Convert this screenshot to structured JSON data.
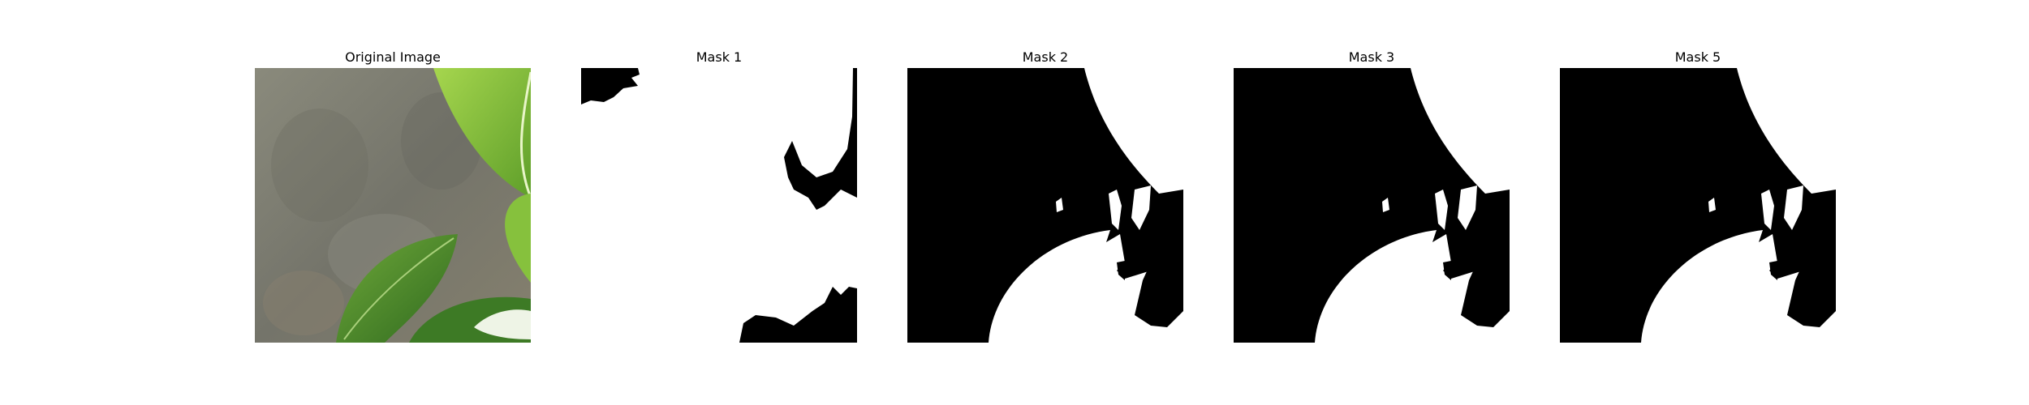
{
  "panels": [
    {
      "title": "Original Image",
      "kind": "photo"
    },
    {
      "title": "Mask 1",
      "kind": "mask-inverse"
    },
    {
      "title": "Mask 2",
      "kind": "mask"
    },
    {
      "title": "Mask 3",
      "kind": "mask"
    },
    {
      "title": "Mask 5",
      "kind": "mask"
    }
  ],
  "colors": {
    "background": "#ffffff",
    "mask_fg": "#000000",
    "mask_bg": "#ffffff",
    "stone": "#7d7d6e",
    "leaf_light": "#8cc63f",
    "leaf_dark": "#3f7d24"
  }
}
